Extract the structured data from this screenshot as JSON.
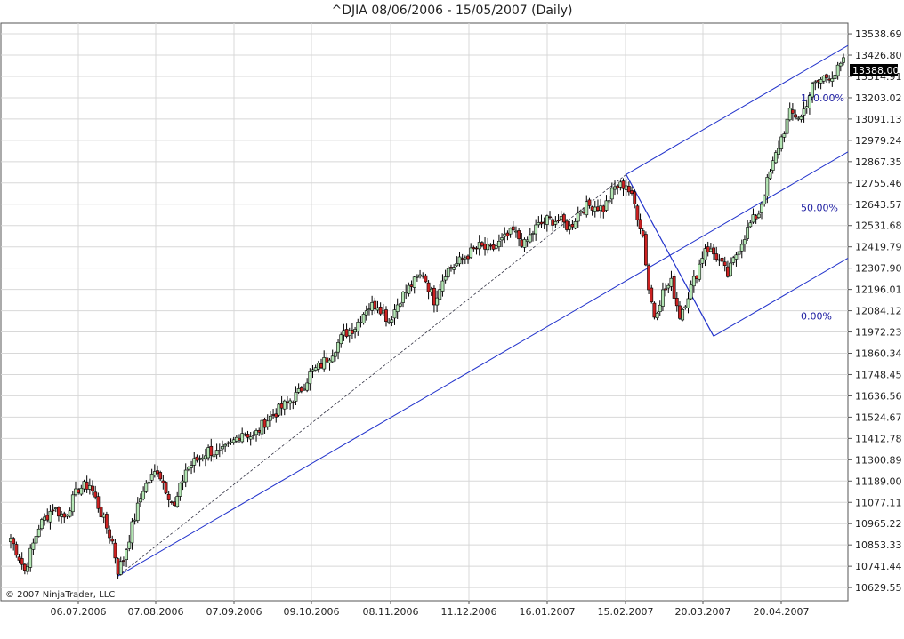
{
  "chart_data": {
    "type": "candlestick",
    "title": "^DJIA  08/06/2006 - 15/05/2007 (Daily)",
    "copyright": "© 2007 NinjaTrader, LLC",
    "y_ticks": [
      10629.55,
      10741.44,
      10853.33,
      10965.22,
      11077.11,
      11189.0,
      11300.89,
      11412.78,
      11524.67,
      11636.56,
      11748.45,
      11860.34,
      11972.23,
      12084.12,
      12196.01,
      12307.9,
      12419.79,
      12531.68,
      12643.57,
      12755.46,
      12867.35,
      12979.24,
      13091.13,
      13203.02,
      13314.91,
      13426.8,
      13538.69
    ],
    "ylim": [
      10560,
      13595
    ],
    "x_ticks": [
      "06.07.2006",
      "07.08.2006",
      "07.09.2006",
      "09.10.2006",
      "08.11.2006",
      "11.12.2006",
      "16.01.2007",
      "15.02.2007",
      "20.03.2007",
      "20.04.2007"
    ],
    "last_price": "13388.00",
    "grid": true,
    "fib_levels": [
      {
        "label": "100.00%"
      },
      {
        "label": "50.00%"
      },
      {
        "label": "0.00%"
      }
    ],
    "close_path": [
      [
        0,
        10890
      ],
      [
        5,
        10720
      ],
      [
        10,
        10950
      ],
      [
        15,
        11050
      ],
      [
        19,
        11000
      ],
      [
        24,
        11150
      ],
      [
        28,
        11170
      ],
      [
        32,
        11020
      ],
      [
        36,
        10870
      ],
      [
        38,
        10720
      ],
      [
        40,
        10780
      ],
      [
        43,
        10950
      ],
      [
        47,
        11150
      ],
      [
        52,
        11250
      ],
      [
        55,
        11150
      ],
      [
        58,
        11050
      ],
      [
        62,
        11250
      ],
      [
        66,
        11300
      ],
      [
        70,
        11350
      ],
      [
        74,
        11330
      ],
      [
        78,
        11380
      ],
      [
        82,
        11450
      ],
      [
        86,
        11420
      ],
      [
        90,
        11500
      ],
      [
        94,
        11550
      ],
      [
        98,
        11600
      ],
      [
        102,
        11650
      ],
      [
        106,
        11750
      ],
      [
        110,
        11800
      ],
      [
        114,
        11870
      ],
      [
        118,
        11960
      ],
      [
        122,
        12000
      ],
      [
        126,
        12100
      ],
      [
        130,
        12120
      ],
      [
        134,
        12030
      ],
      [
        138,
        12150
      ],
      [
        142,
        12220
      ],
      [
        146,
        12280
      ],
      [
        150,
        12140
      ],
      [
        154,
        12290
      ],
      [
        158,
        12330
      ],
      [
        162,
        12380
      ],
      [
        166,
        12420
      ],
      [
        170,
        12400
      ],
      [
        174,
        12450
      ],
      [
        178,
        12500
      ],
      [
        182,
        12430
      ],
      [
        186,
        12520
      ],
      [
        190,
        12560
      ],
      [
        194,
        12560
      ],
      [
        198,
        12520
      ],
      [
        202,
        12620
      ],
      [
        206,
        12640
      ],
      [
        210,
        12620
      ],
      [
        214,
        12730
      ],
      [
        218,
        12750
      ],
      [
        221,
        12640
      ],
      [
        224,
        12480
      ],
      [
        226,
        12200
      ],
      [
        228,
        12060
      ],
      [
        231,
        12180
      ],
      [
        234,
        12230
      ],
      [
        237,
        12060
      ],
      [
        240,
        12170
      ],
      [
        243,
        12280
      ],
      [
        246,
        12420
      ],
      [
        250,
        12370
      ],
      [
        254,
        12270
      ],
      [
        258,
        12420
      ],
      [
        262,
        12540
      ],
      [
        265,
        12600
      ],
      [
        268,
        12760
      ],
      [
        272,
        12950
      ],
      [
        276,
        13120
      ],
      [
        280,
        13100
      ],
      [
        284,
        13260
      ],
      [
        288,
        13310
      ],
      [
        292,
        13330
      ],
      [
        295,
        13388
      ]
    ]
  }
}
